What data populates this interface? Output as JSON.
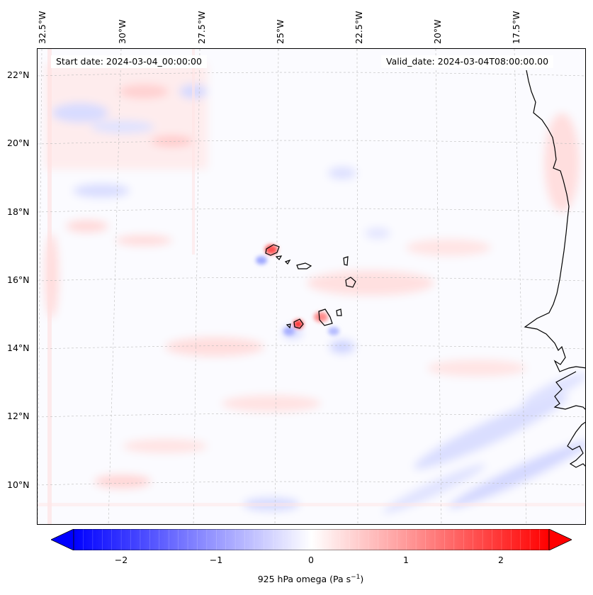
{
  "map": {
    "lon_labels": [
      "32.5°W",
      "30°W",
      "27.5°W",
      "25°W",
      "22.5°W",
      "20°W",
      "17.5°W"
    ],
    "lat_labels": [
      "22°N",
      "20°N",
      "18°N",
      "16°N",
      "14°N",
      "12°N",
      "10°N"
    ],
    "start_date": "Start date: 2024-03-04_00:00:00",
    "valid_date": "Valid_date: 2024-03-04T08:00:00.00",
    "features": [
      "Cape Verde islands",
      "West African coastline"
    ]
  },
  "colorbar": {
    "ticks": [
      "−2",
      "−1",
      "0",
      "1",
      "2"
    ],
    "tick_values": [
      -2,
      -1,
      0,
      1,
      2
    ],
    "min": -2.5,
    "max": 2.5,
    "label": "925 hPa omega (Pa s",
    "label_exponent": "−1",
    "label_close": ")",
    "colormap": "bwr",
    "colors": {
      "negative": "#0000ff",
      "zero": "#ffffff",
      "positive": "#ff0000"
    }
  }
}
